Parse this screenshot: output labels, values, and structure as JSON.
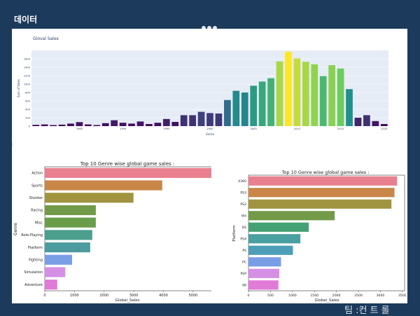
{
  "slide": {
    "title": "데이터",
    "footer": "팀 :컨 트 롤"
  },
  "colors": {
    "background": "#1b3a5c",
    "plot_bg": "#e5ecf6",
    "genre_palette": [
      "#e9808f",
      "#c98648",
      "#a09441",
      "#729a48",
      "#6a9d4a",
      "#4c9e8d",
      "#4c9b9f",
      "#7a9ee5",
      "#d58fe4",
      "#e07bd7"
    ],
    "platform_palette": [
      "#e9808f",
      "#c98648",
      "#a09441",
      "#729a48",
      "#44a173",
      "#4a9fa0",
      "#4d9fb7",
      "#7a9ee5",
      "#d58fe4",
      "#e07bd7"
    ]
  },
  "chart_data": [
    {
      "type": "bar",
      "title": "Gloval Sales",
      "xlabel": "Genre",
      "ylabel": "Sum of Sales",
      "x": [
        1980,
        1981,
        1982,
        1983,
        1984,
        1985,
        1986,
        1987,
        1988,
        1989,
        1990,
        1991,
        1992,
        1993,
        1994,
        1995,
        1996,
        1997,
        1998,
        1999,
        2000,
        2001,
        2002,
        2003,
        2004,
        2005,
        2006,
        2007,
        2008,
        2009,
        2010,
        2011,
        2012,
        2013,
        2014,
        2015,
        2016,
        2017,
        2018,
        2019,
        2020
      ],
      "values": [
        30,
        40,
        25,
        35,
        60,
        95,
        40,
        25,
        70,
        140,
        80,
        60,
        110,
        50,
        80,
        170,
        100,
        260,
        260,
        340,
        310,
        300,
        620,
        840,
        800,
        960,
        1060,
        1140,
        1540,
        1770,
        1610,
        1530,
        1470,
        1190,
        1450,
        1370,
        880,
        200,
        260,
        120,
        50
      ],
      "xticks": [
        "1985",
        "1990",
        "1995",
        "2000",
        "2005",
        "2010",
        "2015",
        "2020"
      ],
      "yticks": [
        "0",
        "200",
        "400",
        "600",
        "800",
        "1000",
        "1200",
        "1400",
        "1600"
      ],
      "ylim": [
        0,
        1800
      ]
    },
    {
      "type": "bar",
      "orientation": "horizontal",
      "title": "Top 10 Genre wise global game sales :",
      "xlabel": "Global_Sales",
      "ylabel": "Genre",
      "categories": [
        "Action",
        "Sports",
        "Shooter",
        "Racing",
        "Misc",
        "Role-Playing",
        "Platform",
        "Fighting",
        "Simulation",
        "Adventure"
      ],
      "values": [
        5680,
        3960,
        2990,
        1720,
        1720,
        1600,
        1530,
        920,
        690,
        420
      ],
      "xticks": [
        "0",
        "1000",
        "2000",
        "3000",
        "4000",
        "5000"
      ],
      "xlim": [
        0,
        5900
      ]
    },
    {
      "type": "bar",
      "orientation": "horizontal",
      "title": "Top 10 Genre wise global game sales :",
      "xlabel": "Global_Sales",
      "ylabel": "Platform",
      "categories": [
        "X360",
        "PS3",
        "PS2",
        "Wii",
        "DS",
        "PS4",
        "PS",
        "PC",
        "PSP",
        "XB"
      ],
      "values": [
        3380,
        3320,
        3250,
        1960,
        1370,
        1180,
        1010,
        740,
        700,
        680
      ],
      "xticks": [
        "0",
        "500",
        "1000",
        "1500",
        "2000",
        "2500",
        "3000",
        "3500"
      ],
      "xlim": [
        0,
        3550
      ]
    }
  ]
}
